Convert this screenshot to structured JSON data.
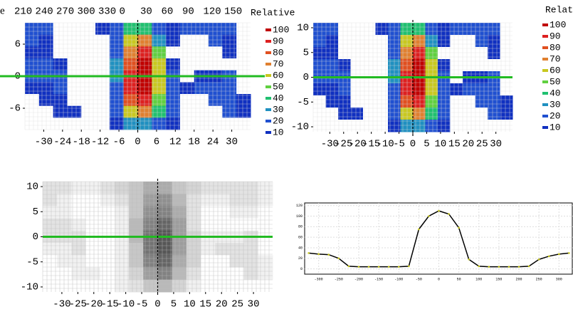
{
  "chart_data": [
    {
      "type": "heatmap",
      "corner_text": "e",
      "colorbar_title": "Relative",
      "top_ticks": [
        210,
        240,
        270,
        300,
        330,
        0,
        30,
        60,
        90,
        120,
        150
      ],
      "xlim": [
        -36,
        36
      ],
      "ylim": [
        -10,
        10
      ],
      "xticks": [
        -30,
        -24,
        -18,
        -12,
        -6,
        0,
        6,
        12,
        18,
        24,
        30
      ],
      "yticks": [
        6,
        0,
        -6
      ],
      "levels": [
        100,
        90,
        80,
        70,
        60,
        50,
        40,
        30,
        20,
        10
      ],
      "colors": [
        "#c00000",
        "#dd2020",
        "#e05020",
        "#e08030",
        "#c8c820",
        "#60d040",
        "#20c070",
        "#2090c0",
        "#2050d0",
        "#1030c0"
      ],
      "colormap": "levels",
      "z": [
        [
          20,
          20,
          0,
          0,
          0,
          10,
          20,
          40,
          40,
          20,
          10,
          20,
          20,
          20,
          20,
          0
        ],
        [
          20,
          10,
          0,
          0,
          0,
          0,
          20,
          60,
          70,
          30,
          10,
          0,
          0,
          20,
          10,
          0
        ],
        [
          10,
          10,
          0,
          0,
          0,
          0,
          20,
          70,
          90,
          50,
          0,
          0,
          0,
          0,
          10,
          0
        ],
        [
          20,
          20,
          10,
          0,
          0,
          0,
          30,
          80,
          100,
          60,
          10,
          0,
          0,
          0,
          0,
          0
        ],
        [
          20,
          20,
          20,
          0,
          0,
          0,
          30,
          90,
          100,
          60,
          20,
          0,
          10,
          10,
          20,
          0
        ],
        [
          10,
          10,
          20,
          0,
          0,
          0,
          20,
          90,
          100,
          60,
          20,
          10,
          20,
          20,
          20,
          0
        ],
        [
          0,
          10,
          10,
          0,
          0,
          0,
          20,
          80,
          90,
          50,
          20,
          0,
          0,
          20,
          20,
          10
        ],
        [
          0,
          0,
          10,
          10,
          0,
          0,
          20,
          60,
          70,
          40,
          20,
          0,
          0,
          0,
          20,
          10
        ],
        [
          0,
          0,
          0,
          0,
          0,
          0,
          10,
          30,
          30,
          20,
          10,
          0,
          0,
          0,
          0,
          0
        ]
      ]
    },
    {
      "type": "heatmap",
      "colorbar_title": "Relative",
      "xlim": [
        -36,
        36
      ],
      "ylim": [
        -11,
        11
      ],
      "xticks": [
        -30,
        -25,
        -20,
        -15,
        -10,
        -5,
        0,
        5,
        10,
        15,
        20,
        25,
        30
      ],
      "yticks": [
        10,
        5,
        0,
        -5,
        -10
      ],
      "levels": [
        100,
        90,
        80,
        70,
        60,
        50,
        40,
        30,
        20,
        10
      ],
      "colors": [
        "#c00000",
        "#dd2020",
        "#e05020",
        "#e08030",
        "#c8c820",
        "#60d040",
        "#20c070",
        "#2090c0",
        "#2050d0",
        "#1030c0"
      ],
      "colormap": "levels",
      "z": [
        [
          20,
          20,
          0,
          0,
          0,
          10,
          20,
          40,
          40,
          20,
          10,
          20,
          20,
          20,
          20,
          0
        ],
        [
          20,
          10,
          0,
          0,
          0,
          0,
          20,
          60,
          70,
          30,
          10,
          0,
          0,
          20,
          10,
          0
        ],
        [
          10,
          10,
          0,
          0,
          0,
          0,
          20,
          70,
          90,
          50,
          0,
          0,
          0,
          0,
          10,
          0
        ],
        [
          20,
          20,
          10,
          0,
          0,
          0,
          30,
          80,
          100,
          60,
          10,
          0,
          0,
          0,
          0,
          0
        ],
        [
          20,
          20,
          20,
          0,
          0,
          0,
          30,
          90,
          100,
          60,
          20,
          0,
          10,
          10,
          20,
          0
        ],
        [
          10,
          10,
          20,
          0,
          0,
          0,
          20,
          90,
          100,
          60,
          20,
          10,
          20,
          20,
          20,
          0
        ],
        [
          0,
          10,
          10,
          0,
          0,
          0,
          20,
          80,
          90,
          50,
          20,
          0,
          0,
          20,
          20,
          10
        ],
        [
          0,
          0,
          10,
          10,
          0,
          0,
          20,
          60,
          70,
          40,
          20,
          0,
          0,
          0,
          20,
          10
        ],
        [
          0,
          0,
          0,
          0,
          0,
          0,
          10,
          30,
          30,
          20,
          10,
          0,
          0,
          0,
          0,
          0
        ]
      ]
    },
    {
      "type": "heatmap",
      "colormap": "gray",
      "xlim": [
        -36,
        36
      ],
      "ylim": [
        -11,
        11
      ],
      "xticks": [
        -30,
        -25,
        -20,
        -15,
        -10,
        -5,
        0,
        5,
        10,
        15,
        20,
        25,
        30
      ],
      "yticks": [
        10,
        5,
        0,
        -5,
        -10
      ],
      "z": [
        [
          10,
          10,
          5,
          5,
          10,
          15,
          20,
          30,
          30,
          20,
          15,
          10,
          10,
          10,
          10,
          5
        ],
        [
          10,
          5,
          0,
          0,
          5,
          10,
          20,
          35,
          40,
          25,
          10,
          5,
          5,
          10,
          10,
          5
        ],
        [
          5,
          5,
          0,
          0,
          0,
          5,
          20,
          40,
          45,
          30,
          10,
          0,
          0,
          5,
          5,
          0
        ],
        [
          10,
          10,
          5,
          0,
          0,
          5,
          25,
          45,
          55,
          35,
          10,
          0,
          0,
          0,
          0,
          0
        ],
        [
          10,
          10,
          10,
          0,
          0,
          5,
          25,
          50,
          60,
          35,
          15,
          5,
          5,
          5,
          10,
          0
        ],
        [
          5,
          5,
          10,
          0,
          0,
          5,
          20,
          50,
          60,
          35,
          15,
          5,
          10,
          10,
          10,
          0
        ],
        [
          0,
          5,
          5,
          0,
          0,
          5,
          20,
          45,
          55,
          30,
          15,
          0,
          0,
          10,
          10,
          5
        ],
        [
          0,
          0,
          5,
          5,
          0,
          5,
          15,
          35,
          45,
          25,
          10,
          0,
          0,
          0,
          10,
          5
        ],
        [
          0,
          0,
          0,
          0,
          0,
          5,
          10,
          20,
          25,
          15,
          5,
          0,
          0,
          0,
          0,
          0
        ]
      ]
    },
    {
      "type": "line",
      "color": "#000000",
      "x": [
        -325,
        -300,
        -275,
        -250,
        -225,
        -200,
        -175,
        -150,
        -125,
        -100,
        -75,
        -50,
        -25,
        0,
        25,
        50,
        75,
        100,
        125,
        150,
        175,
        200,
        225,
        250,
        275,
        300,
        325
      ],
      "values": [
        30,
        28,
        27,
        20,
        5,
        4,
        4,
        4,
        4,
        4,
        5,
        75,
        100,
        110,
        104,
        78,
        18,
        5,
        4,
        4,
        4,
        4,
        5,
        18,
        24,
        28,
        30
      ],
      "xlim": [
        -335,
        335
      ],
      "ylim": [
        -10,
        125
      ],
      "xticks": [
        -300,
        -250,
        -200,
        -150,
        -100,
        -50,
        0,
        50,
        100,
        150,
        200,
        250,
        300
      ],
      "yticks": [
        0,
        20,
        40,
        60,
        80,
        100,
        120
      ]
    }
  ]
}
